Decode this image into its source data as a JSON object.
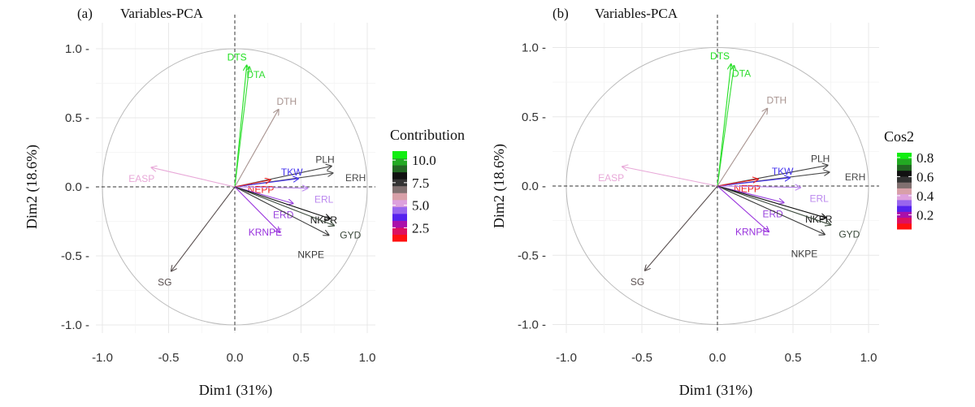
{
  "chart_data": [
    {
      "type": "scatter",
      "panel_label": "(a)",
      "title": "Variables-PCA",
      "xlabel": "Dim1 (31%)",
      "ylabel": "Dim2 (18.6%)",
      "xlim": [
        -1.05,
        1.05
      ],
      "ylim": [
        -1.1,
        1.1
      ],
      "xticks": [
        "-1.0",
        "-0.5",
        "0.0",
        "0.5",
        "1.0"
      ],
      "yticks": [
        "1.0",
        "0.5",
        "0.0",
        "-0.5",
        "-1.0"
      ],
      "grid": true,
      "legend": {
        "title": "Contribution",
        "ticks": [
          "10.0",
          "7.5",
          "5.0",
          "2.5"
        ],
        "tick_values": [
          10,
          7.5,
          5,
          2.5
        ],
        "range": [
          1,
          11
        ],
        "placement": "right"
      },
      "variables": [
        {
          "name": "DTS",
          "x": 0.09,
          "y": 0.88,
          "color": "#22e022"
        },
        {
          "name": "DTA",
          "x": 0.11,
          "y": 0.87,
          "color": "#33dd33"
        },
        {
          "name": "DTH",
          "x": 0.33,
          "y": 0.56,
          "color": "#a89490"
        },
        {
          "name": "PLH",
          "x": 0.73,
          "y": 0.15,
          "color": "#404040"
        },
        {
          "name": "ERH",
          "x": 0.74,
          "y": 0.1,
          "color": "#4a4a4a"
        },
        {
          "name": "TKW",
          "x": 0.48,
          "y": 0.06,
          "color": "#4433ee"
        },
        {
          "name": "NEPP",
          "x": 0.27,
          "y": 0.05,
          "color": "#ee2222"
        },
        {
          "name": "ERL",
          "x": 0.55,
          "y": -0.01,
          "color": "#bb88ee"
        },
        {
          "name": "ERD",
          "x": 0.44,
          "y": -0.12,
          "color": "#9944dd"
        },
        {
          "name": "NKPR",
          "x": 0.72,
          "y": -0.23,
          "color": "#111111"
        },
        {
          "name": "GYD",
          "x": 0.75,
          "y": -0.28,
          "color": "#3c4a3c"
        },
        {
          "name": "NKPE",
          "x": 0.71,
          "y": -0.35,
          "color": "#3a3a3a"
        },
        {
          "name": "KRNPE",
          "x": 0.34,
          "y": -0.33,
          "color": "#9933dd"
        },
        {
          "name": "EASP",
          "x": -0.63,
          "y": 0.14,
          "color": "#e8a8d8"
        },
        {
          "name": "SG",
          "x": -0.48,
          "y": -0.61,
          "color": "#5a5050"
        }
      ]
    },
    {
      "type": "scatter",
      "panel_label": "(b)",
      "title": "Variables-PCA",
      "xlabel": "Dim1 (31%)",
      "ylabel": "Dim2 (18.6%)",
      "xlim": [
        -1.1,
        1.1
      ],
      "ylim": [
        -1.1,
        1.1
      ],
      "xticks": [
        "-1.0",
        "-0.5",
        "0.0",
        "0.5",
        "1.0"
      ],
      "yticks": [
        "1.0",
        "0.5",
        "0.0",
        "-0.5",
        "-1.0"
      ],
      "grid": true,
      "legend": {
        "title": "Cos2",
        "ticks": [
          "0.8",
          "0.6",
          "0.4",
          "0.2"
        ],
        "tick_values": [
          0.8,
          0.6,
          0.4,
          0.2
        ],
        "range": [
          0.05,
          0.85
        ],
        "placement": "right"
      },
      "variables": [
        {
          "name": "DTS",
          "x": 0.09,
          "y": 0.88,
          "color": "#22e022"
        },
        {
          "name": "DTA",
          "x": 0.11,
          "y": 0.87,
          "color": "#33dd33"
        },
        {
          "name": "DTH",
          "x": 0.33,
          "y": 0.56,
          "color": "#a89490"
        },
        {
          "name": "PLH",
          "x": 0.73,
          "y": 0.15,
          "color": "#404040"
        },
        {
          "name": "ERH",
          "x": 0.74,
          "y": 0.1,
          "color": "#4a4a4a"
        },
        {
          "name": "TKW",
          "x": 0.48,
          "y": 0.06,
          "color": "#4433ee"
        },
        {
          "name": "NEPP",
          "x": 0.27,
          "y": 0.05,
          "color": "#ee2222"
        },
        {
          "name": "ERL",
          "x": 0.55,
          "y": -0.01,
          "color": "#bb88ee"
        },
        {
          "name": "ERD",
          "x": 0.44,
          "y": -0.12,
          "color": "#9944dd"
        },
        {
          "name": "NKPR",
          "x": 0.72,
          "y": -0.23,
          "color": "#111111"
        },
        {
          "name": "GYD",
          "x": 0.75,
          "y": -0.28,
          "color": "#3c4a3c"
        },
        {
          "name": "NKPE",
          "x": 0.71,
          "y": -0.35,
          "color": "#3a3a3a"
        },
        {
          "name": "KRNPE",
          "x": 0.34,
          "y": -0.33,
          "color": "#9933dd"
        },
        {
          "name": "EASP",
          "x": -0.63,
          "y": 0.14,
          "color": "#e8a8d8"
        },
        {
          "name": "SG",
          "x": -0.48,
          "y": -0.61,
          "color": "#5a5050"
        }
      ]
    }
  ],
  "legend_colors": [
    "#ff1010",
    "#dd1060",
    "#aa10aa",
    "#5522ee",
    "#9966ee",
    "#dda0dd",
    "#d8a0a8",
    "#807070",
    "#333333",
    "#111111",
    "#226622",
    "#22aa22",
    "#11ee11"
  ]
}
